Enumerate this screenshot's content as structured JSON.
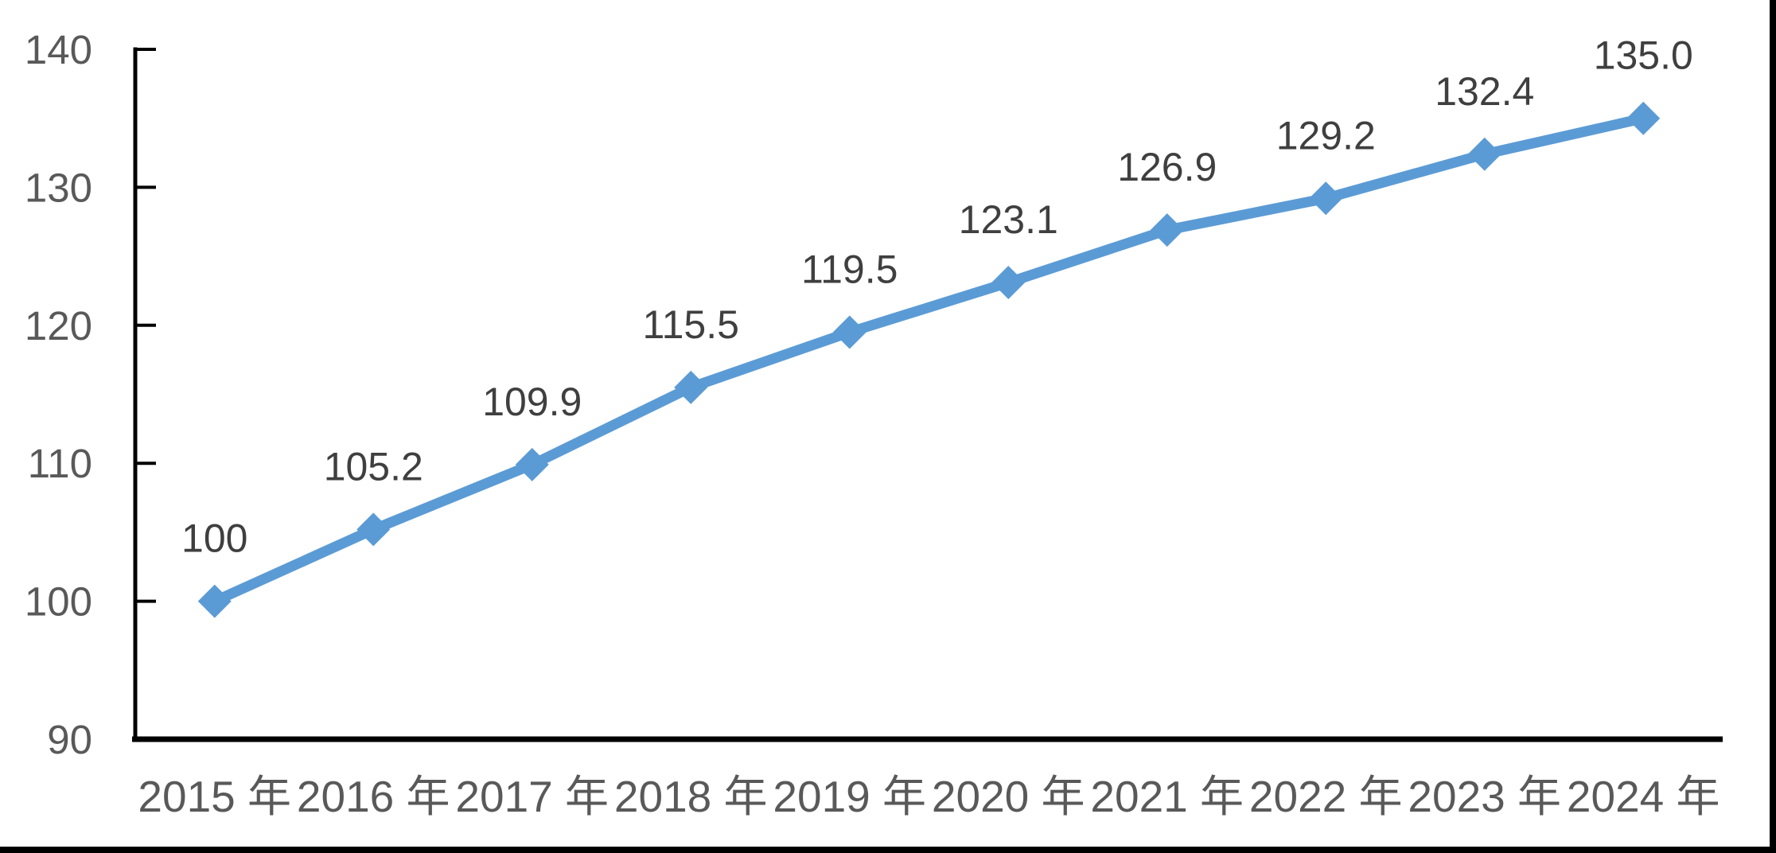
{
  "chart_data": {
    "type": "line",
    "title": "",
    "xlabel": "",
    "ylabel": "",
    "categories": [
      "2015 年",
      "2016 年",
      "2017 年",
      "2018 年",
      "2019 年",
      "2020 年",
      "2021 年",
      "2022 年",
      "2023 年",
      "2024 年"
    ],
    "series": [
      {
        "name": "index",
        "values": [
          100,
          105.2,
          109.9,
          115.5,
          119.5,
          123.1,
          126.9,
          129.2,
          132.4,
          135.0
        ],
        "point_labels": [
          "100",
          "105.2",
          "109.9",
          "115.5",
          "119.5",
          "123.1",
          "126.9",
          "129.2",
          "132.4",
          "135.0"
        ]
      }
    ],
    "ylim": [
      90,
      140
    ],
    "yticks": [
      90,
      100,
      110,
      120,
      130,
      140
    ],
    "grid": "off",
    "legend": "none",
    "marker_style": "diamond",
    "colors": {
      "line": "#5b9bd5",
      "marker": "#5b9bd5",
      "axis": "#000000",
      "tick_labels": "#595959",
      "data_labels": "#3f3f3f",
      "background": "#ffffff",
      "frame_border": "#000000"
    }
  }
}
